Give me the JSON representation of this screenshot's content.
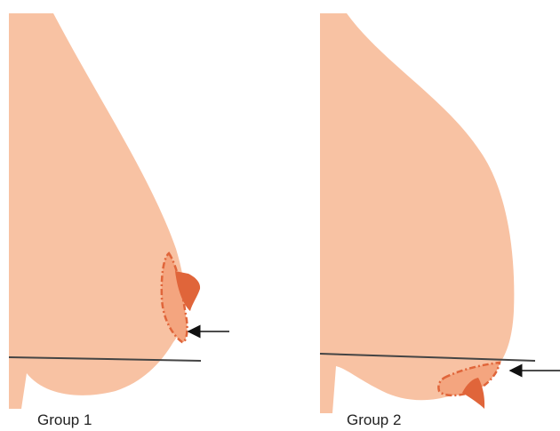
{
  "panels": [
    {
      "label": "Group 1"
    },
    {
      "label": "Group 2"
    }
  ]
}
